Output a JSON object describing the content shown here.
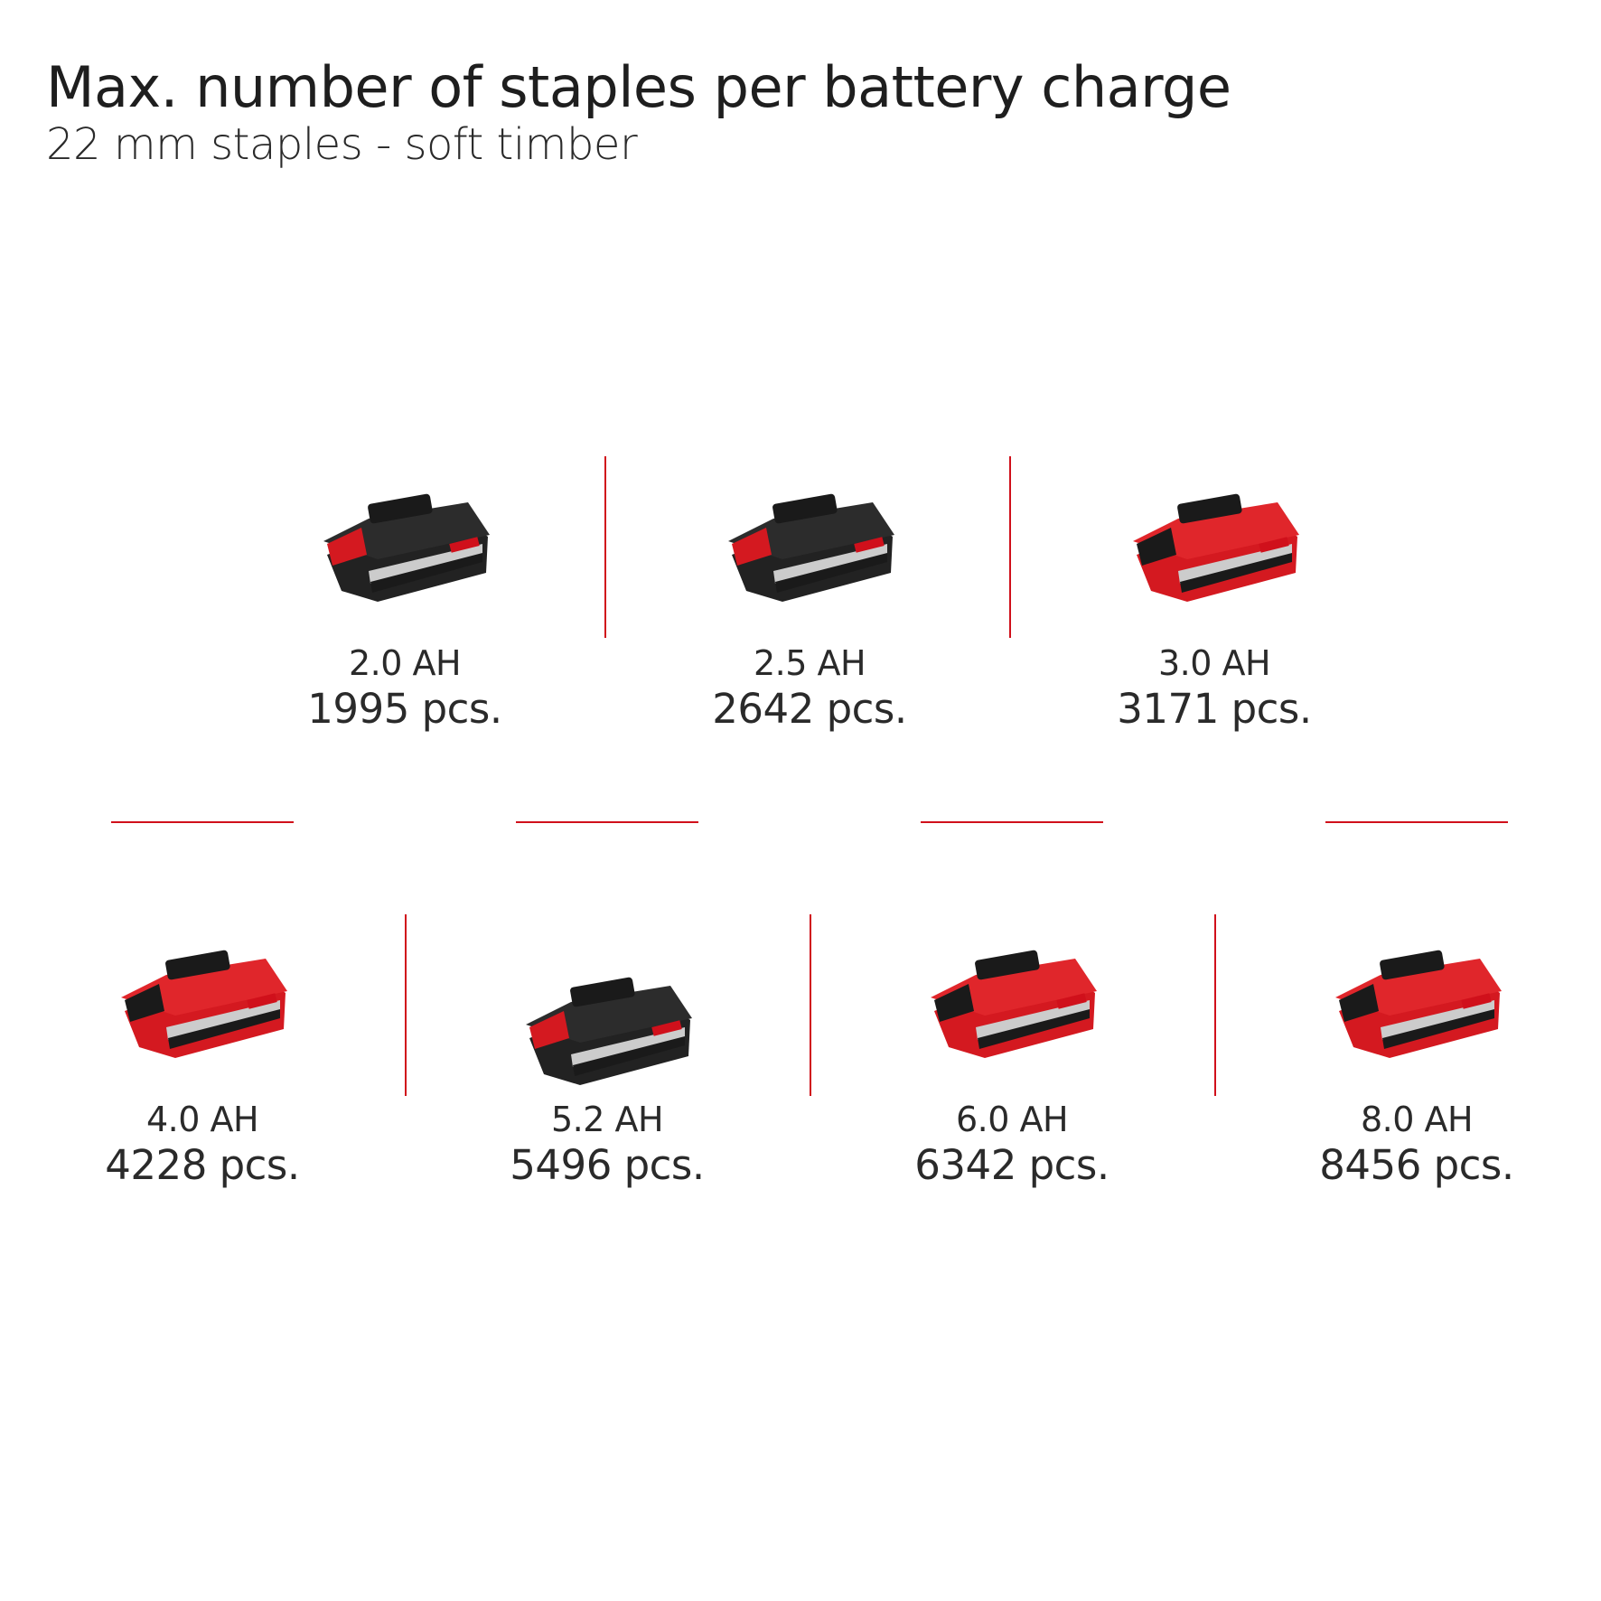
{
  "header": {
    "title": "Max. number of staples per battery charge",
    "subtitle": "22 mm staples - soft timber"
  },
  "accent_color": "#d0101b",
  "batteries": [
    {
      "capacity": "2.0 AH",
      "staples": "1995 pcs.",
      "icon": "battery-pack-icon",
      "body_color": "black"
    },
    {
      "capacity": "2.5 AH",
      "staples": "2642 pcs.",
      "icon": "battery-pack-icon",
      "body_color": "black"
    },
    {
      "capacity": "3.0 AH",
      "staples": "3171 pcs.",
      "icon": "battery-pack-icon",
      "body_color": "red"
    },
    {
      "capacity": "4.0 AH",
      "staples": "4228 pcs.",
      "icon": "battery-pack-icon",
      "body_color": "red"
    },
    {
      "capacity": "5.2 AH",
      "staples": "5496 pcs.",
      "icon": "battery-pack-icon",
      "body_color": "black"
    },
    {
      "capacity": "6.0 AH",
      "staples": "6342 pcs.",
      "icon": "battery-pack-icon",
      "body_color": "red"
    },
    {
      "capacity": "8.0 AH",
      "staples": "8456 pcs.",
      "icon": "battery-pack-icon",
      "body_color": "red"
    }
  ]
}
